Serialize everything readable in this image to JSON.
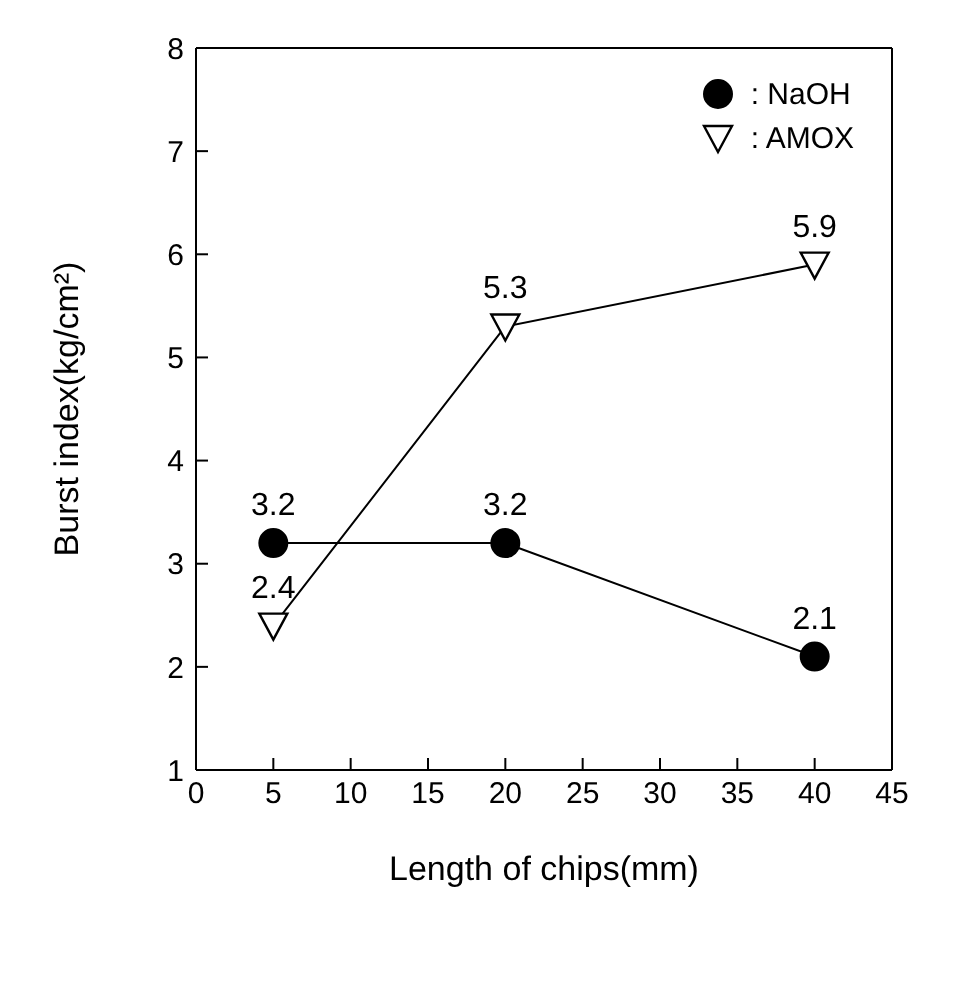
{
  "chart_data": {
    "type": "line",
    "xlabel": "Length of chips(mm)",
    "ylabel": "Burst index(kg/cm²)",
    "x": [
      5,
      20,
      40
    ],
    "series": [
      {
        "name": ": NaOH",
        "color": "#000000",
        "values": [
          3.2,
          3.2,
          2.1
        ],
        "marker": "circle"
      },
      {
        "name": ": AMOX",
        "color": "#000000",
        "values": [
          2.4,
          5.3,
          5.9
        ],
        "marker": "triangle"
      }
    ],
    "xlim": [
      0,
      45
    ],
    "xticks": [
      0,
      5,
      10,
      15,
      20,
      25,
      30,
      35,
      40,
      45
    ],
    "ylim": [
      1,
      8
    ],
    "yticks": [
      1,
      2,
      3,
      4,
      5,
      6,
      7,
      8
    ],
    "data_labels": true,
    "legend": "top right",
    "grid": false
  }
}
